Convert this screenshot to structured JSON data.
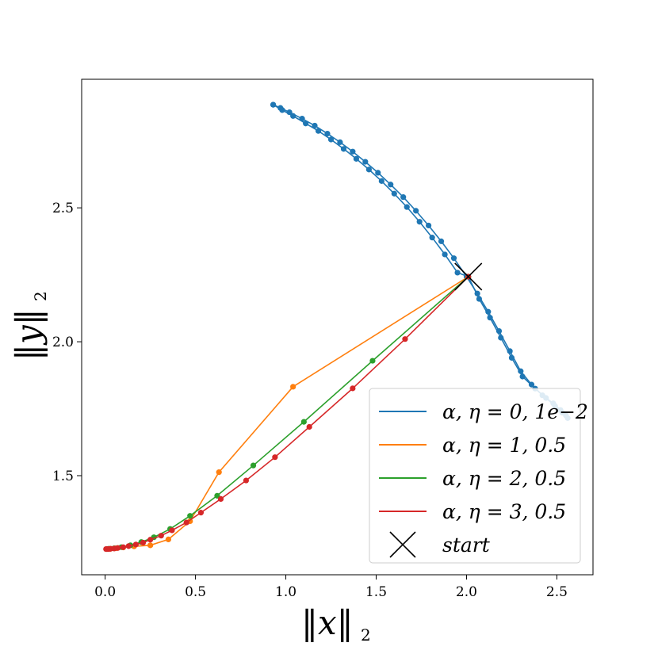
{
  "chart_data": {
    "type": "line",
    "xlabel": "‖x‖",
    "xlabel_sub": "2",
    "ylabel": "‖y‖",
    "ylabel_sub": "2",
    "xlim": [
      -0.13,
      2.7
    ],
    "ylim": [
      1.13,
      2.98
    ],
    "xticks": [
      0.0,
      0.5,
      1.0,
      1.5,
      2.0,
      2.5
    ],
    "xtick_labels": [
      "0.0",
      "0.5",
      "1.0",
      "1.5",
      "2.0",
      "2.5"
    ],
    "yticks": [
      1.5,
      2.0,
      2.5
    ],
    "ytick_labels": [
      "1.5",
      "2.0",
      "2.5"
    ],
    "grid": false,
    "legend_position": "lower-right",
    "series": [
      {
        "name": "α, η = 0, 1e−2",
        "color": "#1f77b4",
        "points": [
          [
            0.93,
            2.885
          ],
          [
            0.97,
            2.873
          ],
          [
            1.02,
            2.857
          ],
          [
            1.09,
            2.833
          ],
          [
            1.16,
            2.807
          ],
          [
            1.23,
            2.777
          ],
          [
            1.3,
            2.745
          ],
          [
            1.37,
            2.71
          ],
          [
            1.44,
            2.672
          ],
          [
            1.51,
            2.631
          ],
          [
            1.58,
            2.587
          ],
          [
            1.65,
            2.54
          ],
          [
            1.72,
            2.489
          ],
          [
            1.79,
            2.434
          ],
          [
            1.86,
            2.375
          ],
          [
            1.93,
            2.312
          ],
          [
            2.0,
            2.243
          ],
          [
            2.06,
            2.18
          ],
          [
            2.12,
            2.112
          ],
          [
            2.18,
            2.04
          ],
          [
            2.24,
            1.965
          ],
          [
            2.3,
            1.89
          ],
          [
            2.36,
            1.84
          ],
          [
            2.42,
            1.8
          ],
          [
            2.48,
            1.77
          ],
          [
            2.52,
            1.745
          ],
          [
            2.55,
            1.725
          ]
        ],
        "points_b": [
          [
            0.93,
            2.885
          ],
          [
            0.98,
            2.865
          ],
          [
            1.04,
            2.843
          ],
          [
            1.11,
            2.815
          ],
          [
            1.18,
            2.787
          ],
          [
            1.25,
            2.755
          ],
          [
            1.32,
            2.72
          ],
          [
            1.39,
            2.683
          ],
          [
            1.46,
            2.643
          ],
          [
            1.53,
            2.6
          ],
          [
            1.6,
            2.553
          ],
          [
            1.67,
            2.503
          ],
          [
            1.74,
            2.448
          ],
          [
            1.81,
            2.389
          ],
          [
            1.88,
            2.326
          ],
          [
            1.95,
            2.258
          ],
          [
            2.01,
            2.243
          ],
          [
            2.07,
            2.16
          ],
          [
            2.13,
            2.09
          ],
          [
            2.19,
            2.015
          ],
          [
            2.25,
            1.94
          ],
          [
            2.31,
            1.87
          ],
          [
            2.38,
            1.825
          ],
          [
            2.44,
            1.79
          ],
          [
            2.49,
            1.76
          ],
          [
            2.53,
            1.735
          ],
          [
            2.56,
            1.715
          ]
        ]
      },
      {
        "name": "α, η = 1, 0.5",
        "color": "#ff7f0e",
        "points": [
          [
            2.01,
            2.243
          ],
          [
            1.04,
            1.832
          ],
          [
            0.63,
            1.513
          ],
          [
            0.47,
            1.33
          ],
          [
            0.35,
            1.262
          ],
          [
            0.25,
            1.24
          ],
          [
            0.16,
            1.236
          ],
          [
            0.1,
            1.232
          ],
          [
            0.06,
            1.229
          ],
          [
            0.03,
            1.227
          ],
          [
            0.01,
            1.226
          ]
        ]
      },
      {
        "name": "α, η = 2, 0.5",
        "color": "#2ca02c",
        "points": [
          [
            2.01,
            2.243
          ],
          [
            1.48,
            1.929
          ],
          [
            1.1,
            1.701
          ],
          [
            0.82,
            1.538
          ],
          [
            0.62,
            1.425
          ],
          [
            0.47,
            1.35
          ],
          [
            0.36,
            1.301
          ],
          [
            0.27,
            1.27
          ],
          [
            0.2,
            1.252
          ],
          [
            0.14,
            1.24
          ],
          [
            0.09,
            1.233
          ],
          [
            0.05,
            1.229
          ],
          [
            0.02,
            1.227
          ],
          [
            0.01,
            1.226
          ]
        ]
      },
      {
        "name": "α, η = 3, 0.5",
        "color": "#d62728",
        "points": [
          [
            2.01,
            2.243
          ],
          [
            1.66,
            2.01
          ],
          [
            1.37,
            1.826
          ],
          [
            1.13,
            1.682
          ],
          [
            0.94,
            1.569
          ],
          [
            0.78,
            1.482
          ],
          [
            0.64,
            1.413
          ],
          [
            0.53,
            1.362
          ],
          [
            0.45,
            1.325
          ],
          [
            0.37,
            1.296
          ],
          [
            0.31,
            1.276
          ],
          [
            0.25,
            1.261
          ],
          [
            0.21,
            1.25
          ],
          [
            0.17,
            1.243
          ],
          [
            0.13,
            1.237
          ],
          [
            0.1,
            1.233
          ],
          [
            0.07,
            1.23
          ],
          [
            0.05,
            1.228
          ],
          [
            0.03,
            1.227
          ],
          [
            0.02,
            1.226
          ],
          [
            0.01,
            1.226
          ],
          [
            0.005,
            1.226
          ]
        ]
      }
    ],
    "start": {
      "name": "start",
      "x": 2.01,
      "y": 2.243,
      "color": "#000000"
    }
  }
}
